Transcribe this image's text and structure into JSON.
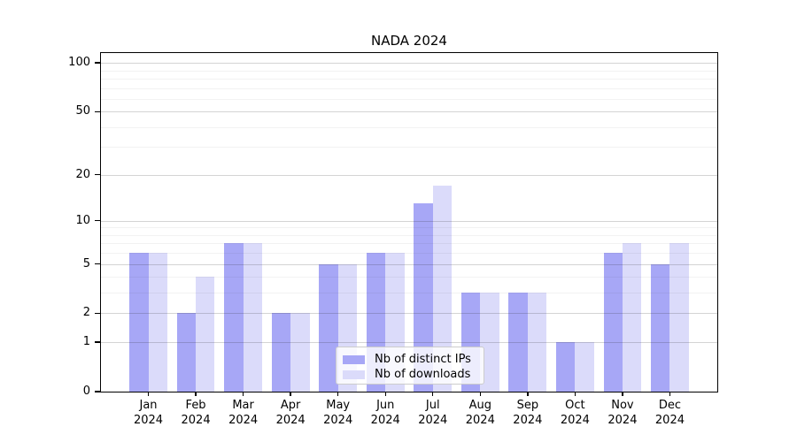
{
  "title": "NADA 2024",
  "colors": {
    "ips_bar": "#a7a7f6",
    "downloads_bar": "#dbdbfa",
    "spine": "#000000",
    "legend_border": "#cccccc"
  },
  "legend": {
    "items": [
      {
        "label": "Nb of distinct IPs",
        "color": "#a7a7f6"
      },
      {
        "label": "Nb of downloads",
        "color": "#dbdbfa"
      }
    ]
  },
  "chart_data": {
    "type": "bar",
    "title": "NADA 2024",
    "categories": [
      "Jan",
      "Feb",
      "Mar",
      "Apr",
      "May",
      "Jun",
      "Jul",
      "Aug",
      "Sep",
      "Oct",
      "Nov",
      "Dec"
    ],
    "category_year": "2024",
    "series": [
      {
        "name": "Nb of distinct IPs",
        "color": "#a7a7f6",
        "values": [
          6,
          2,
          7,
          2,
          5,
          6,
          13,
          3,
          3,
          1,
          6,
          5
        ]
      },
      {
        "name": "Nb of downloads",
        "color": "#dbdbfa",
        "values": [
          6,
          4,
          7,
          2,
          5,
          6,
          17,
          3,
          3,
          1,
          7,
          7
        ]
      }
    ],
    "xlabel": "",
    "ylabel": "",
    "yscale": "log1p",
    "ylim": [
      0,
      115
    ],
    "yticks_major": [
      0,
      1,
      2,
      5,
      10,
      20,
      50,
      100
    ],
    "yticks_minor": [
      3,
      4,
      6,
      7,
      8,
      9,
      30,
      40,
      60,
      70,
      80,
      90
    ],
    "grid": true,
    "legend_position": "lower center"
  }
}
